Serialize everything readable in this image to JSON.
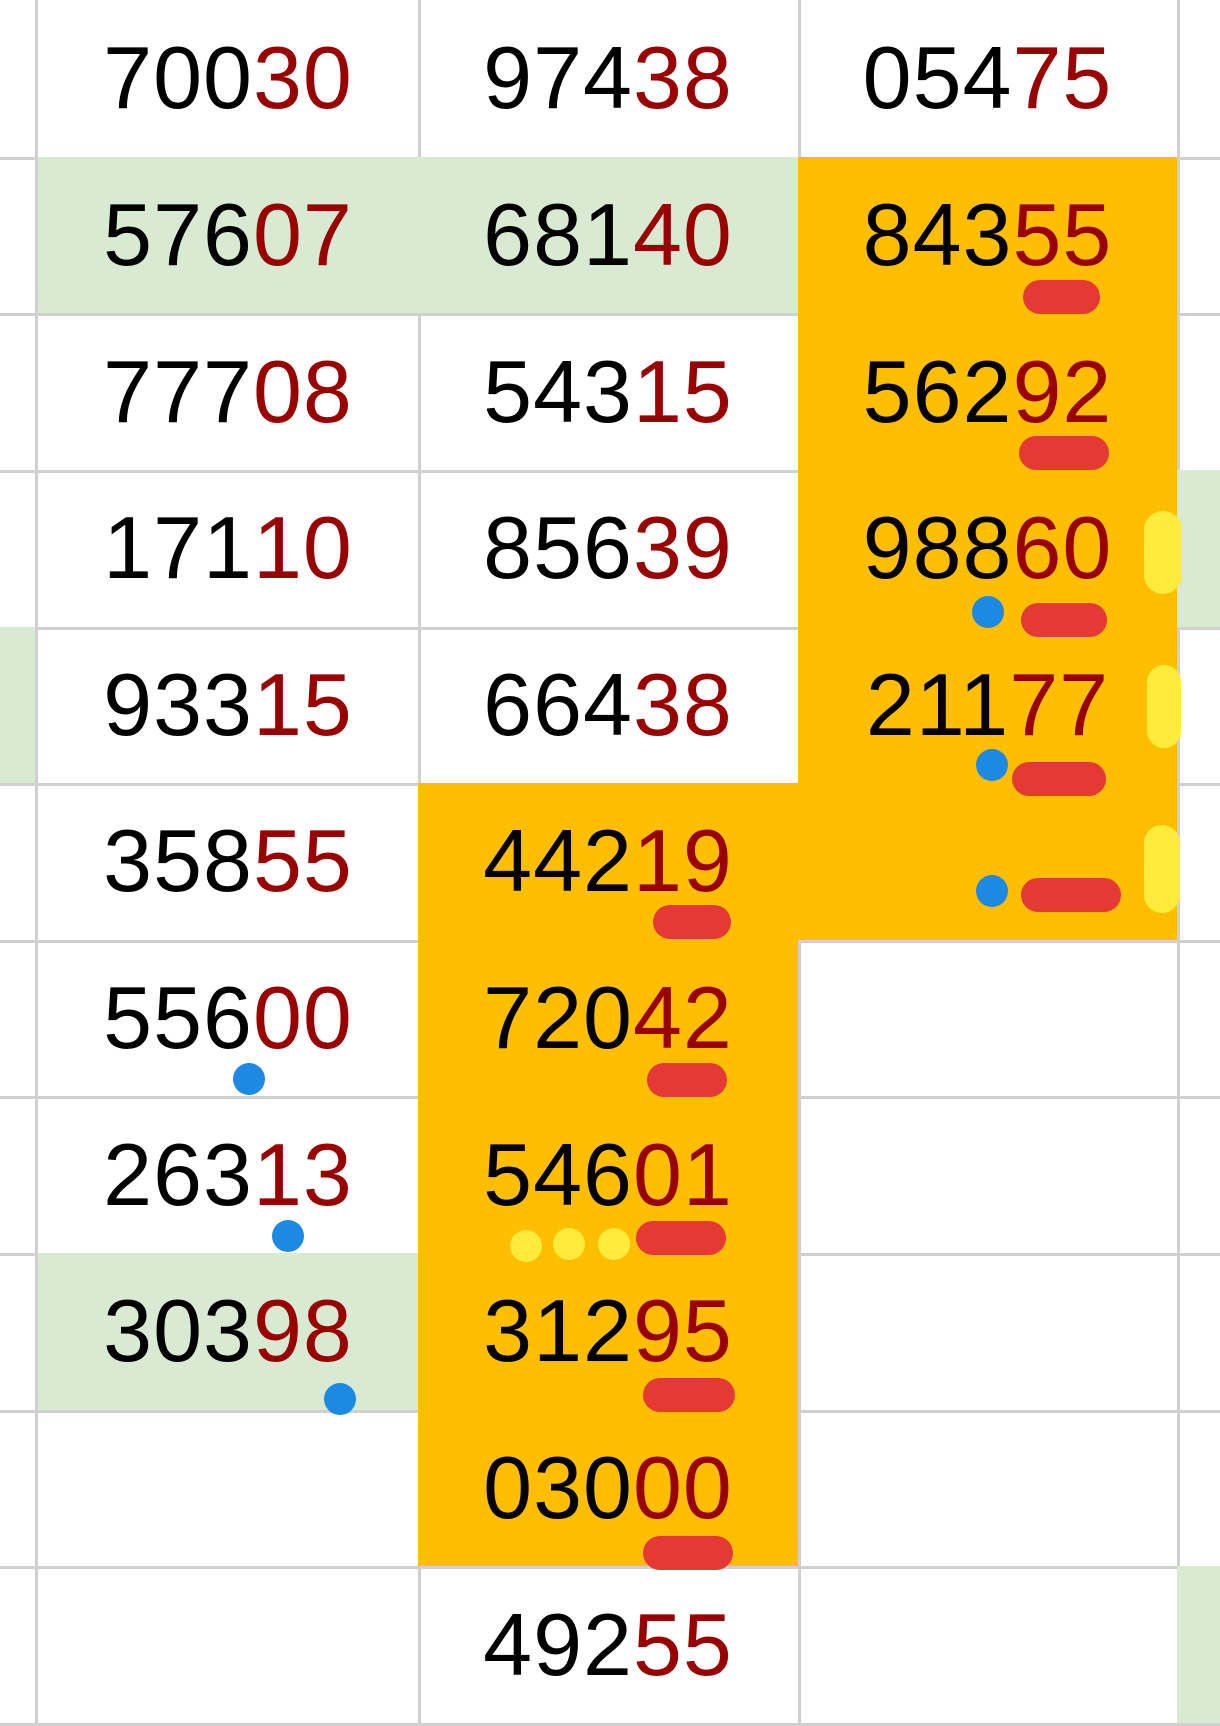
{
  "colors": {
    "green_fill": "#d9ead3",
    "orange_fill": "#ffbf00",
    "highlight_digits": "#990000",
    "red_marker": "#e53935",
    "blue_marker": "#1e88e5",
    "yellow_marker": "#ffeb3b"
  },
  "grid": {
    "rows": [
      [
        {
          "fill": ""
        },
        {
          "a": "700",
          "b": "30"
        },
        {
          "a": "974",
          "b": "38"
        },
        {
          "a": "054",
          "b": "75"
        },
        {
          "fill": ""
        }
      ],
      [
        {
          "fill": ""
        },
        {
          "a": "576",
          "b": "07",
          "fill": "green"
        },
        {
          "a": "681",
          "b": "40",
          "fill": "green"
        },
        {
          "a": "843",
          "b": "55",
          "fill": "orange"
        },
        {
          "fill": ""
        }
      ],
      [
        {
          "fill": ""
        },
        {
          "a": "777",
          "b": "08"
        },
        {
          "a": "543",
          "b": "15"
        },
        {
          "a": "562",
          "b": "92",
          "fill": "orange"
        },
        {
          "fill": ""
        }
      ],
      [
        {
          "fill": ""
        },
        {
          "a": "171",
          "b": "10"
        },
        {
          "a": "856",
          "b": "39"
        },
        {
          "a": "988",
          "b": "60",
          "fill": "orange"
        },
        {
          "fill": "green"
        }
      ],
      [
        {
          "fill": "green"
        },
        {
          "a": "933",
          "b": "15"
        },
        {
          "a": "664",
          "b": "38"
        },
        {
          "a": "211",
          "b": "77",
          "fill": "orange"
        },
        {
          "fill": ""
        }
      ],
      [
        {
          "fill": ""
        },
        {
          "a": "358",
          "b": "55"
        },
        {
          "a": "442",
          "b": "19",
          "fill": "orange"
        },
        {
          "fill": "orange"
        },
        {
          "fill": ""
        }
      ],
      [
        {
          "fill": ""
        },
        {
          "a": "556",
          "b": "00"
        },
        {
          "a": "720",
          "b": "42",
          "fill": "orange"
        },
        {
          "fill": ""
        },
        {
          "fill": ""
        }
      ],
      [
        {
          "fill": ""
        },
        {
          "a": "263",
          "b": "13"
        },
        {
          "a": "546",
          "b": "01",
          "fill": "orange"
        },
        {
          "fill": ""
        },
        {
          "fill": ""
        }
      ],
      [
        {
          "fill": ""
        },
        {
          "a": "303",
          "b": "98",
          "fill": "green"
        },
        {
          "a": "312",
          "b": "95",
          "fill": "orange"
        },
        {
          "fill": ""
        },
        {
          "fill": ""
        }
      ],
      [
        {
          "fill": ""
        },
        {},
        {
          "a": "030",
          "b": "00",
          "fill": "orange"
        },
        {
          "fill": ""
        },
        {
          "fill": ""
        }
      ],
      [
        {
          "fill": ""
        },
        {},
        {
          "a": "492",
          "b": "55"
        },
        {
          "fill": ""
        },
        {
          "fill": "green"
        }
      ]
    ]
  }
}
